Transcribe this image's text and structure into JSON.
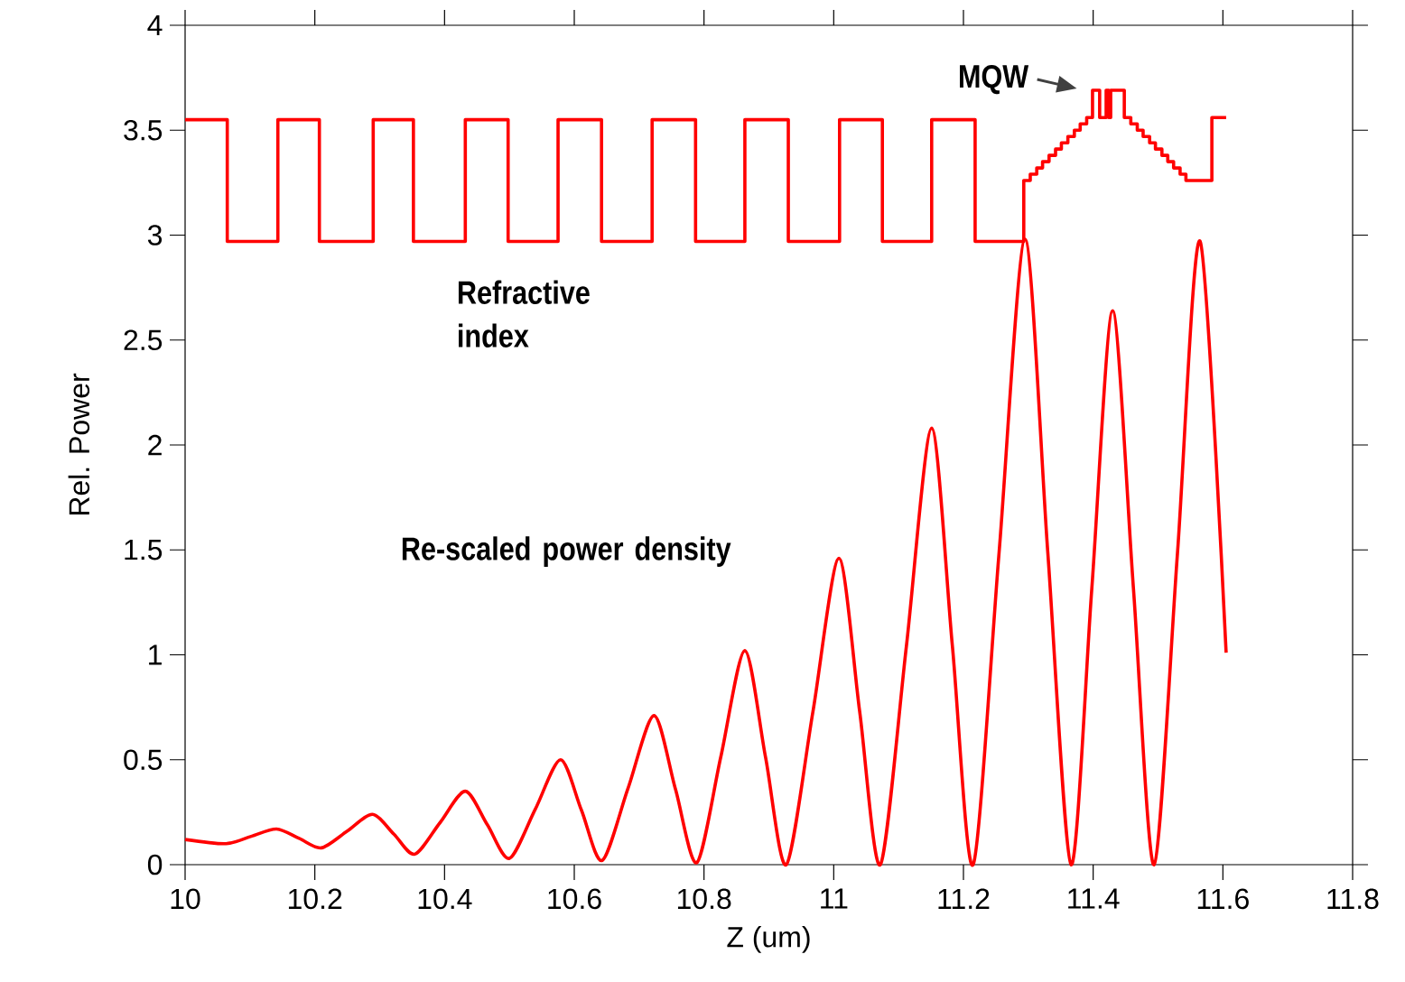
{
  "chart_data": {
    "type": "line",
    "xlabel": "Z (um)",
    "ylabel": "Rel. Power",
    "xlim": [
      10,
      11.8
    ],
    "ylim": [
      0,
      4
    ],
    "xticks": [
      10,
      10.2,
      10.4,
      10.6,
      10.8,
      11,
      11.2,
      11.4,
      11.6,
      11.8
    ],
    "yticks": [
      0,
      0.5,
      1,
      1.5,
      2,
      2.5,
      3,
      3.5,
      4
    ],
    "grid": false,
    "legend": false,
    "annotations": [
      {
        "text": "MQW",
        "x": 11.4,
        "y": 3.69
      }
    ],
    "series": [
      {
        "name": "Refractive index",
        "type": "step",
        "color": "#ff0000",
        "x": [
          10.0,
          10.065,
          10.143,
          10.207,
          10.29,
          10.352,
          10.432,
          10.498,
          10.575,
          10.642,
          10.72,
          10.787,
          10.863,
          10.93,
          11.009,
          11.075,
          11.151,
          11.218,
          11.293,
          11.303,
          11.313,
          11.322,
          11.332,
          11.342,
          11.351,
          11.361,
          11.371,
          11.38,
          11.39,
          11.399,
          11.41,
          11.42,
          11.424,
          11.427,
          11.448,
          11.458,
          11.468,
          11.477,
          11.487,
          11.496,
          11.506,
          11.515,
          11.524,
          11.534,
          11.543,
          11.583,
          11.605
        ],
        "values": [
          3.55,
          2.97,
          3.55,
          2.97,
          3.55,
          2.97,
          3.55,
          2.97,
          3.55,
          2.97,
          3.55,
          2.97,
          3.55,
          2.97,
          3.55,
          2.97,
          3.55,
          2.97,
          3.26,
          3.29,
          3.32,
          3.35,
          3.38,
          3.41,
          3.44,
          3.47,
          3.5,
          3.53,
          3.56,
          3.69,
          3.56,
          3.69,
          3.56,
          3.69,
          3.56,
          3.53,
          3.5,
          3.47,
          3.44,
          3.41,
          3.38,
          3.35,
          3.32,
          3.29,
          3.26,
          3.56,
          3.56
        ]
      },
      {
        "name": "Re-scaled power density",
        "color": "#ff0000",
        "x": [
          10.0,
          10.063,
          10.102,
          10.141,
          10.176,
          10.21,
          10.25,
          10.289,
          10.322,
          10.354,
          10.393,
          10.432,
          10.466,
          10.5,
          10.54,
          10.579,
          10.611,
          10.643,
          10.683,
          10.723,
          10.756,
          10.789,
          10.826,
          10.863,
          10.895,
          10.927,
          10.968,
          11.008,
          11.04,
          11.072,
          11.112,
          11.151,
          11.183,
          11.215,
          11.255,
          11.295,
          11.33,
          11.366,
          11.398,
          11.43,
          11.462,
          11.494,
          11.53,
          11.565,
          11.605
        ],
        "values": [
          0.12,
          0.1,
          0.135,
          0.17,
          0.125,
          0.08,
          0.16,
          0.24,
          0.145,
          0.05,
          0.2,
          0.35,
          0.19,
          0.03,
          0.265,
          0.5,
          0.26,
          0.02,
          0.365,
          0.71,
          0.36,
          0.01,
          0.515,
          1.02,
          0.51,
          0.0,
          0.73,
          1.46,
          0.73,
          0.0,
          1.04,
          2.08,
          1.04,
          0.0,
          1.49,
          2.98,
          1.49,
          0.0,
          1.32,
          2.64,
          1.32,
          0.0,
          1.485,
          2.97,
          1.01
        ]
      }
    ]
  }
}
